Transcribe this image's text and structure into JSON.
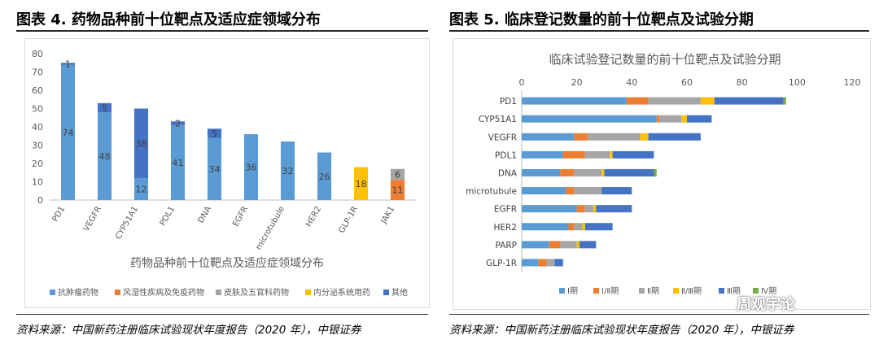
{
  "figure1": {
    "heading": "图表 4. 药物品种前十位靶点及适应症领域分布",
    "source": "资料来源：中国新药注册临床试验现状年度报告（2020 年），中银证券"
  },
  "figure2": {
    "heading": "图表 5. 临床登记数量的前十位靶点及试验分期",
    "source": "资料来源：中国新药注册临床试验现状年度报告（2020 年），中银证券"
  },
  "watermark": "周观宇论",
  "chart_data": [
    {
      "type": "bar",
      "stacked": true,
      "title": "药物品种前十位靶点及适应症领域分布",
      "categories": [
        "PD1",
        "VEGFR",
        "CYP51A1",
        "PDL1",
        "DNA",
        "EGFR",
        "microtubule",
        "HER2",
        "GLP-1R",
        "JAK1"
      ],
      "series": [
        {
          "name": "抗肿瘤药物",
          "color": "#5b9bd5",
          "values": [
            74,
            48,
            12,
            41,
            34,
            36,
            32,
            26,
            0,
            0
          ],
          "labels": [
            "74",
            "48",
            "12",
            "41",
            "34",
            "36",
            "32",
            "26",
            "",
            ""
          ]
        },
        {
          "name": "风湿性疾病及免疫药物",
          "color": "#ed7d31",
          "values": [
            0,
            0,
            0,
            0,
            0,
            0,
            0,
            0,
            0,
            11
          ],
          "labels": [
            "",
            "",
            "",
            "",
            "",
            "",
            "",
            "",
            "",
            "11"
          ]
        },
        {
          "name": "皮肤及五官科药物",
          "color": "#a5a5a5",
          "values": [
            0,
            0,
            0,
            0,
            0,
            0,
            0,
            0,
            0,
            6
          ],
          "labels": [
            "",
            "",
            "",
            "",
            "",
            "",
            "",
            "",
            "",
            "6"
          ]
        },
        {
          "name": "内分泌系统用药",
          "color": "#ffc000",
          "values": [
            0,
            0,
            0,
            0,
            0,
            0,
            0,
            0,
            18,
            0
          ],
          "labels": [
            "",
            "",
            "",
            "",
            "",
            "",
            "",
            "",
            "18",
            ""
          ]
        },
        {
          "name": "其他",
          "color": "#4472c4",
          "values": [
            1,
            5,
            38,
            2,
            5,
            0,
            0,
            0,
            0,
            0
          ],
          "labels": [
            "1",
            "5",
            "38",
            "2",
            "5",
            "",
            "",
            "",
            "",
            ""
          ]
        }
      ],
      "ylim": [
        0,
        80
      ],
      "yticks": [
        0,
        10,
        20,
        30,
        40,
        50,
        60,
        70,
        80
      ],
      "grid": false,
      "legend": "bottom"
    },
    {
      "type": "bar",
      "orientation": "horizontal",
      "stacked": true,
      "title": "临床试验登记数量的前十位靶点及试验分期",
      "categories": [
        "PD1",
        "CYP51A1",
        "VEGFR",
        "PDL1",
        "DNA",
        "microtubule",
        "EGFR",
        "HER2",
        "PARP",
        "GLP-1R"
      ],
      "series": [
        {
          "name": "Ⅰ期",
          "color": "#5b9bd5",
          "values": [
            38,
            49,
            19,
            15,
            14,
            16,
            20,
            17,
            10,
            6
          ]
        },
        {
          "name": "Ⅰ/Ⅱ期",
          "color": "#ed7d31",
          "values": [
            8,
            1,
            5,
            8,
            5,
            3,
            3,
            2,
            4,
            3
          ]
        },
        {
          "name": "Ⅱ期",
          "color": "#a5a5a5",
          "values": [
            19,
            8,
            19,
            9,
            10,
            10,
            3,
            3,
            6,
            3
          ]
        },
        {
          "name": "Ⅱ/Ⅲ期",
          "color": "#ffc000",
          "values": [
            5,
            2,
            3,
            1,
            1,
            0,
            1,
            1,
            1,
            0
          ]
        },
        {
          "name": "Ⅲ期",
          "color": "#4472c4",
          "values": [
            25,
            9,
            19,
            15,
            18,
            11,
            13,
            10,
            6,
            3
          ]
        },
        {
          "name": "Ⅳ期",
          "color": "#70ad47",
          "values": [
            1,
            0,
            0,
            0,
            1,
            0,
            0,
            0,
            0,
            0
          ]
        }
      ],
      "xlim": [
        0,
        120
      ],
      "xticks": [
        0,
        20,
        40,
        60,
        80,
        100,
        120
      ],
      "grid": false,
      "legend": "bottom"
    }
  ]
}
